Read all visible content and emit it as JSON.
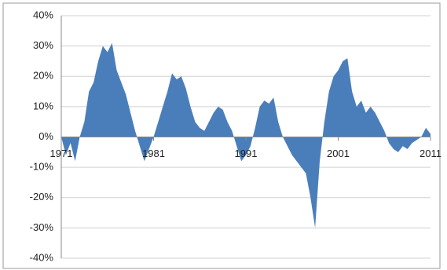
{
  "chart_data": {
    "type": "area",
    "color": "#4a7ebb",
    "grid": true,
    "x": [
      1971,
      1971.5,
      1972,
      1972.5,
      1973,
      1973.5,
      1974,
      1974.5,
      1975,
      1975.5,
      1976,
      1976.5,
      1977,
      1977.5,
      1978,
      1978.5,
      1979,
      1979.5,
      1980,
      1980.5,
      1981,
      1981.5,
      1982,
      1982.5,
      1983,
      1983.5,
      1984,
      1984.5,
      1985,
      1985.5,
      1986,
      1986.5,
      1987,
      1987.5,
      1988,
      1988.5,
      1989,
      1989.5,
      1990,
      1990.5,
      1991,
      1991.5,
      1992,
      1992.5,
      1993,
      1993.5,
      1994,
      1994.5,
      1995,
      1995.5,
      1996,
      1996.5,
      1997,
      1997.5,
      1998,
      1998.5,
      1999,
      1999.5,
      2000,
      2000.5,
      2001,
      2001.5,
      2002,
      2002.5,
      2003,
      2003.5,
      2004,
      2004.5,
      2005,
      2005.5,
      2006,
      2006.5,
      2007,
      2007.5,
      2008,
      2008.5,
      2009,
      2009.5,
      2010,
      2010.5,
      2011
    ],
    "values": [
      0,
      -6,
      -2,
      -8,
      0,
      5,
      15,
      18,
      25,
      30,
      28,
      31,
      22,
      18,
      14,
      8,
      2,
      -3,
      -8,
      -4,
      0,
      5,
      10,
      15,
      21,
      19,
      20,
      16,
      10,
      5,
      3,
      2,
      5,
      8,
      10,
      9,
      5,
      2,
      -3,
      -8,
      -6,
      -3,
      3,
      10,
      12,
      11,
      13,
      5,
      0,
      -3,
      -6,
      -8,
      -10,
      -12,
      -20,
      -30,
      -8,
      5,
      15,
      20,
      22,
      25,
      26,
      15,
      10,
      12,
      8,
      10,
      8,
      5,
      2,
      -2,
      -4,
      -5,
      -3,
      -4,
      -2,
      -1,
      0,
      3,
      1
    ],
    "xlim": [
      1971,
      2011
    ],
    "xticks": [
      1971,
      1981,
      1991,
      2001,
      2011
    ],
    "ylim": [
      -40,
      40
    ],
    "yticks": [
      {
        "value": -40,
        "label": "-40%"
      },
      {
        "value": -30,
        "label": "-30%"
      },
      {
        "value": -20,
        "label": "-20%"
      },
      {
        "value": -10,
        "label": "-10%"
      },
      {
        "value": 0,
        "label": "0%"
      },
      {
        "value": 10,
        "label": "10%"
      },
      {
        "value": 20,
        "label": "20%"
      },
      {
        "value": 30,
        "label": "30%"
      },
      {
        "value": 40,
        "label": "40%"
      }
    ]
  }
}
